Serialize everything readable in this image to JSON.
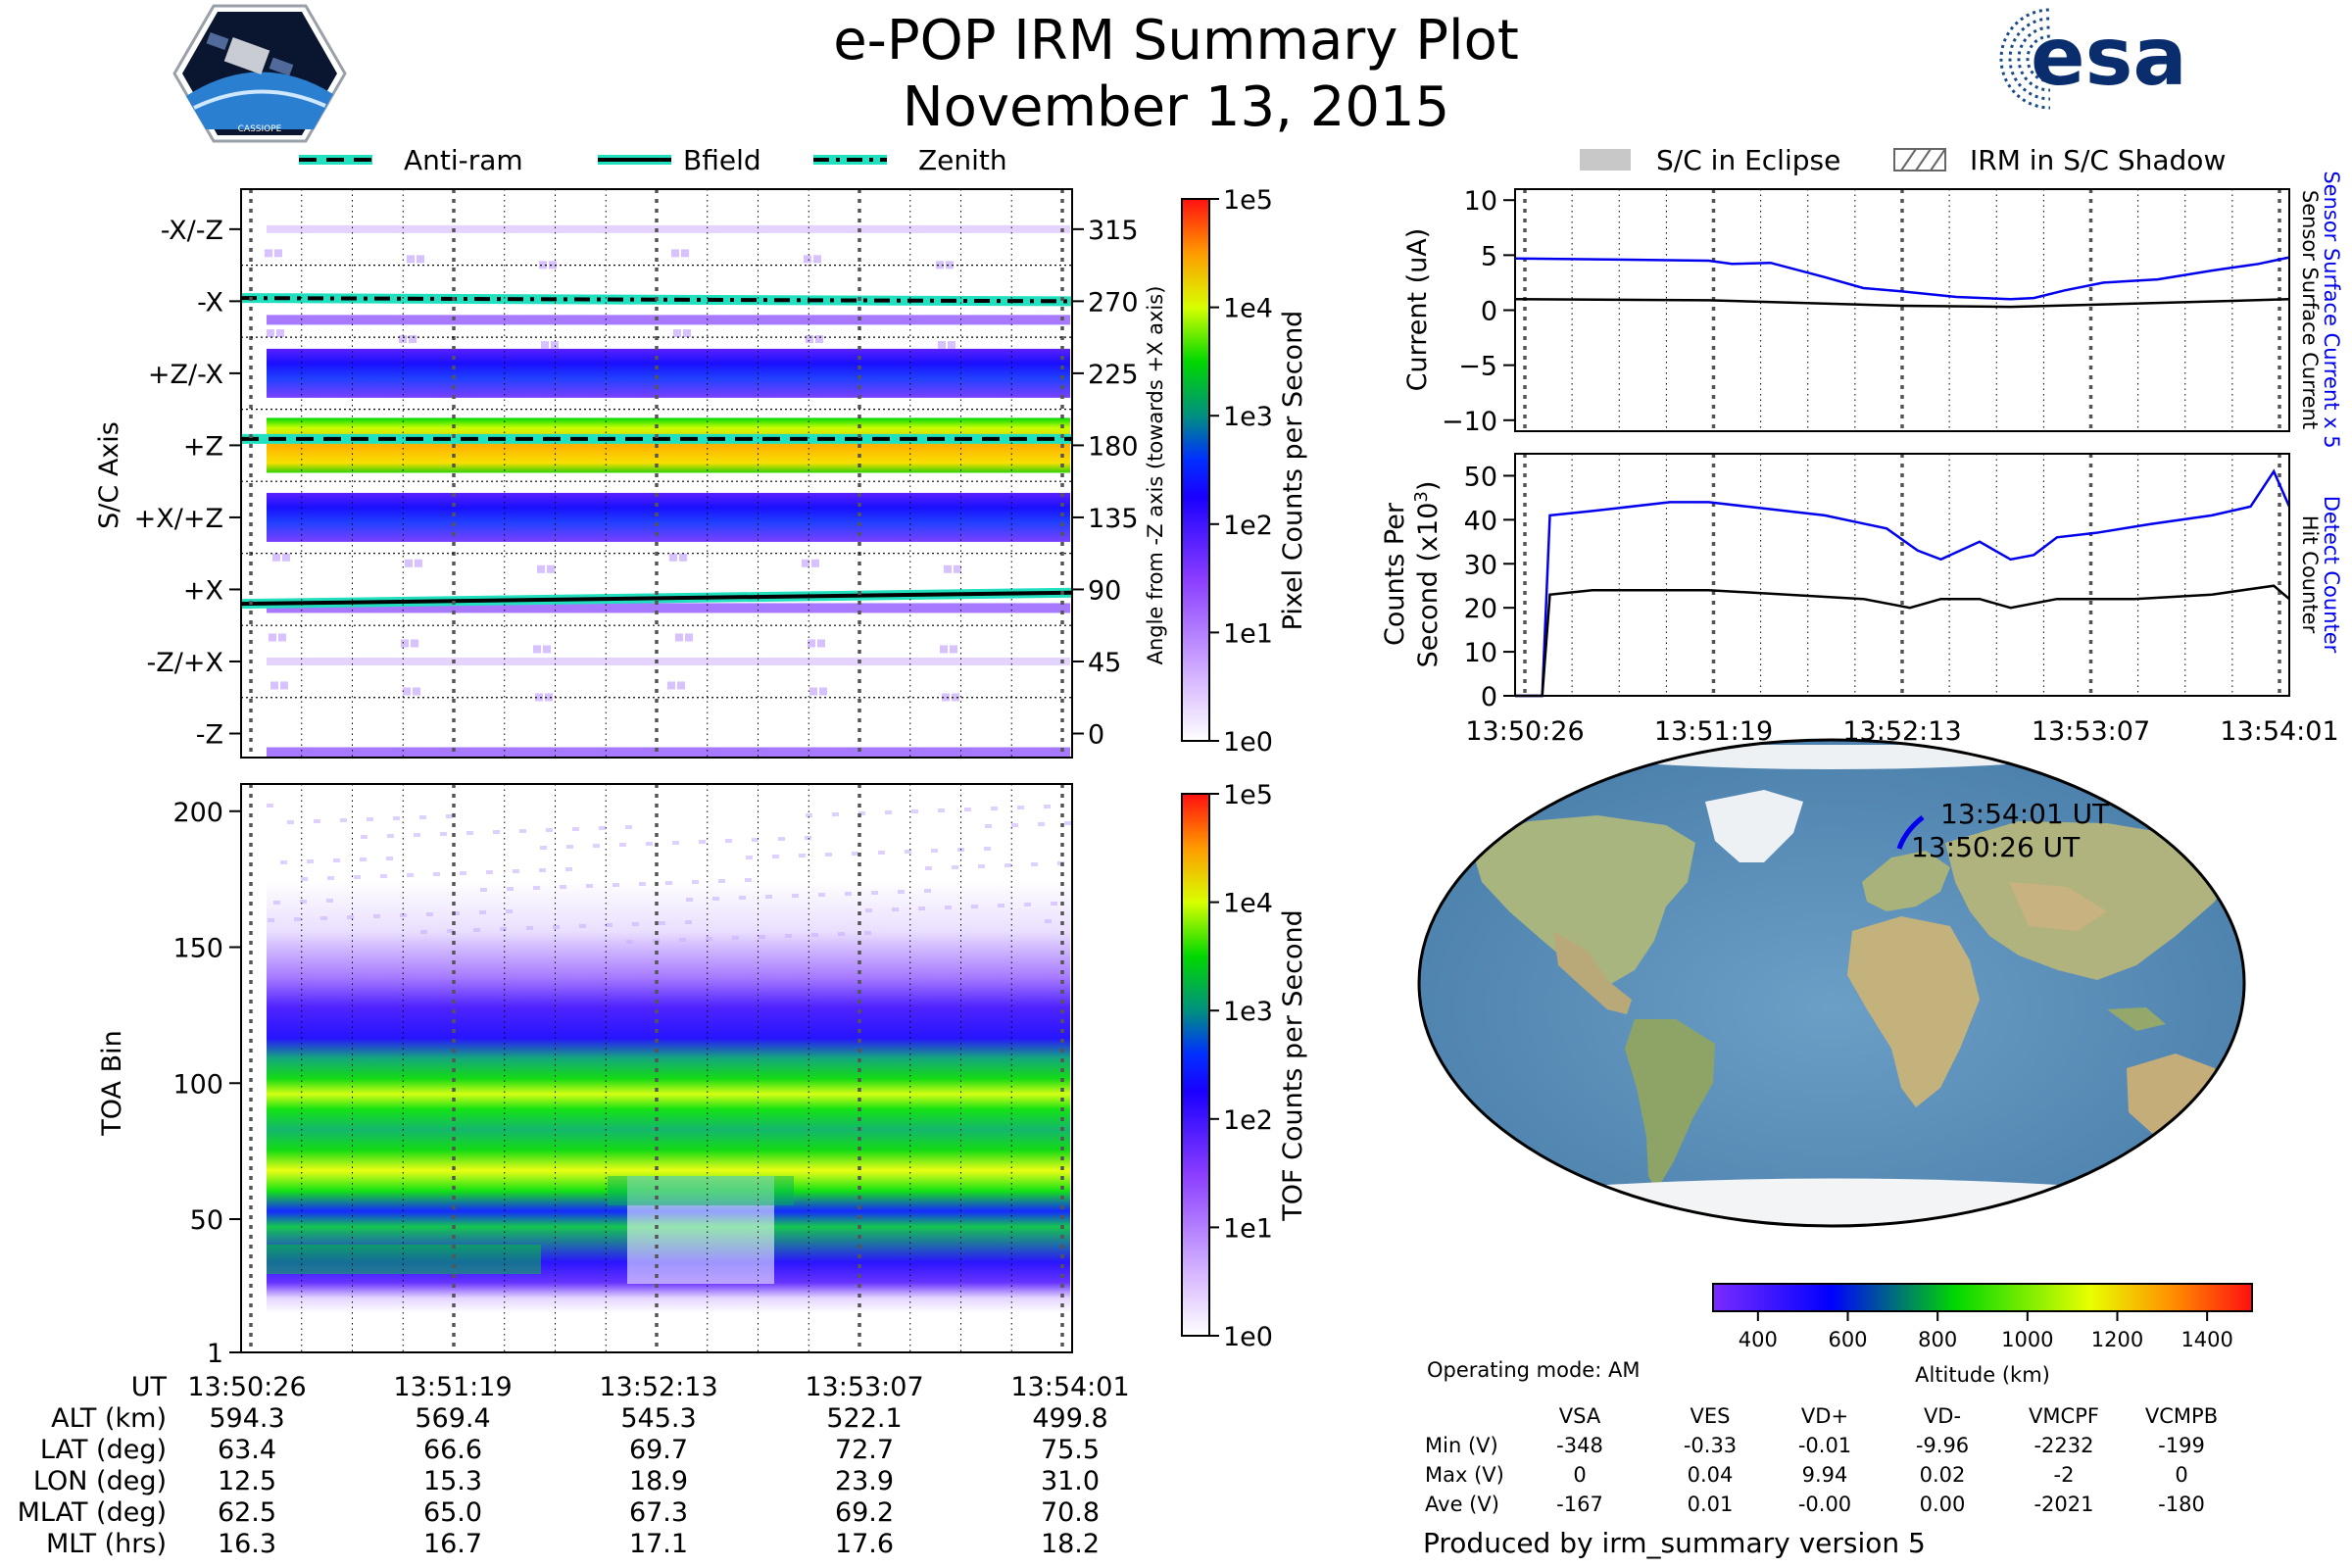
{
  "title": "e-POP IRM Summary Plot",
  "subtitle": "November 13, 2015",
  "logos": {
    "left_badge": "CASSIOPE",
    "right": "esa"
  },
  "colors": {
    "series_blue": "#0000ee",
    "series_black": "#000000",
    "line_teal": "#20e0c0",
    "map_ocean": "#5b8fb8",
    "map_land": "#a5b07a",
    "map_ice": "#f2f4f6"
  },
  "time_ticks": [
    "13:50:26",
    "13:51:19",
    "13:52:13",
    "13:53:07",
    "13:54:01"
  ],
  "legend_top_left": [
    "Anti-ram",
    "Bfield",
    "Zenith"
  ],
  "legend_top_right": [
    "S/C in Eclipse",
    "IRM in S/C Shadow"
  ],
  "chart_data": [
    {
      "id": "sc_axis_heatmap",
      "type": "heatmap",
      "ylabel": "S/C Axis",
      "ylabel_right": "Angle from -Z axis (towards +X axis)",
      "axis_labels": [
        "-X/-Z",
        "-X",
        "+Z/-X",
        "+Z",
        "+X/+Z",
        "+X",
        "-Z/+X",
        "-Z"
      ],
      "angle_ticks": [
        315,
        270,
        225,
        180,
        135,
        90,
        45,
        0
      ],
      "ylim": [
        -15,
        340
      ],
      "lines": [
        {
          "name": "Zenith",
          "angle_start": 272,
          "angle_end": 270
        },
        {
          "name": "Anti-ram",
          "angle_start": 184,
          "angle_end": 184
        },
        {
          "name": "Bfield",
          "angle_start": 81,
          "angle_end": 88
        }
      ],
      "bands": [
        {
          "angle": 180,
          "level": "high"
        },
        {
          "angle": 225,
          "level": "medium"
        },
        {
          "angle": 135,
          "level": "medium"
        },
        {
          "angle": 270,
          "level": "low"
        },
        {
          "angle": 90,
          "level": "low"
        },
        {
          "angle": 0,
          "level": "low"
        },
        {
          "angle": 315,
          "level": "sparse"
        },
        {
          "angle": 45,
          "level": "sparse"
        }
      ],
      "colorbar": {
        "label": "Pixel Counts per Second",
        "ticks": [
          "1e5",
          "1e4",
          "1e3",
          "1e2",
          "1e1",
          "1e0"
        ]
      }
    },
    {
      "id": "toa_heatmap",
      "type": "heatmap",
      "ylabel": "TOA Bin",
      "yticks": [
        "200",
        "150",
        "100",
        "50",
        "1"
      ],
      "ylim": [
        1,
        210
      ],
      "colorbar": {
        "label": "TOF Counts per Second",
        "ticks": [
          "1e5",
          "1e4",
          "1e3",
          "1e2",
          "1e1",
          "1e0"
        ]
      }
    },
    {
      "id": "current_line",
      "type": "line",
      "ylabel": "Current (uA)",
      "right_label_blue": "Sensor Surface Current x 5",
      "right_label_black": "Sensor Surface Current",
      "ylim": [
        -11,
        11
      ],
      "yticks": [
        "10",
        "5",
        "0",
        "−5",
        "−10"
      ],
      "series": [
        {
          "name": "Sensor Surface Current x 5",
          "x": [
            0,
            0.25,
            0.28,
            0.33,
            0.4,
            0.45,
            0.5,
            0.57,
            0.64,
            0.67,
            0.71,
            0.76,
            0.83,
            0.9,
            0.96,
            1.0
          ],
          "values": [
            4.7,
            4.5,
            4.2,
            4.3,
            3.0,
            2.0,
            1.7,
            1.2,
            1.0,
            1.1,
            1.8,
            2.5,
            2.8,
            3.6,
            4.2,
            4.8
          ]
        },
        {
          "name": "Sensor Surface Current",
          "x": [
            0,
            0.25,
            0.5,
            0.64,
            0.8,
            1.0
          ],
          "values": [
            1.0,
            0.9,
            0.4,
            0.3,
            0.6,
            1.0
          ]
        }
      ]
    },
    {
      "id": "counts_line",
      "type": "line",
      "ylabel": "Counts Per",
      "ylabel_2": "Second (x10",
      "ylabel_sup": "3",
      "ylabel_close": ")",
      "right_label_blue": "Detect Counter",
      "right_label_black": "Hit Counter",
      "ylim": [
        0,
        55
      ],
      "yticks": [
        "50",
        "40",
        "30",
        "20",
        "10",
        "0"
      ],
      "series": [
        {
          "name": "Detect Counter",
          "x": [
            0,
            0.035,
            0.045,
            0.1,
            0.2,
            0.25,
            0.3,
            0.4,
            0.48,
            0.52,
            0.55,
            0.6,
            0.64,
            0.67,
            0.7,
            0.75,
            0.82,
            0.9,
            0.95,
            0.98,
            1.0
          ],
          "values": [
            0,
            0,
            41,
            42,
            44,
            44,
            43,
            41,
            38,
            33,
            31,
            35,
            31,
            32,
            36,
            37,
            39,
            41,
            43,
            51,
            43
          ]
        },
        {
          "name": "Hit Counter",
          "x": [
            0,
            0.035,
            0.045,
            0.1,
            0.25,
            0.45,
            0.51,
            0.55,
            0.6,
            0.64,
            0.7,
            0.8,
            0.9,
            0.98,
            1.0
          ],
          "values": [
            0,
            0,
            23,
            24,
            24,
            22,
            20,
            22,
            22,
            20,
            22,
            22,
            23,
            25,
            22
          ]
        }
      ]
    }
  ],
  "map": {
    "label_end": "13:54:01 UT",
    "label_start": "13:50:26 UT",
    "altitude_label": "Altitude (km)",
    "altitude_ticks": [
      "400",
      "600",
      "800",
      "1000",
      "1200",
      "1400"
    ]
  },
  "ephemeris": {
    "rows": [
      {
        "label": "UT",
        "values": [
          "13:50:26",
          "13:51:19",
          "13:52:13",
          "13:53:07",
          "13:54:01"
        ]
      },
      {
        "label": "ALT (km)",
        "values": [
          "594.3",
          "569.4",
          "545.3",
          "522.1",
          "499.8"
        ]
      },
      {
        "label": "LAT (deg)",
        "values": [
          "63.4",
          "66.6",
          "69.7",
          "72.7",
          "75.5"
        ]
      },
      {
        "label": "LON (deg)",
        "values": [
          "12.5",
          "15.3",
          "18.9",
          "23.9",
          "31.0"
        ]
      },
      {
        "label": "MLAT (deg)",
        "values": [
          "62.5",
          "65.0",
          "67.3",
          "69.2",
          "70.8"
        ]
      },
      {
        "label": "MLT (hrs)",
        "values": [
          "16.3",
          "16.7",
          "17.1",
          "17.6",
          "18.2"
        ]
      }
    ]
  },
  "voltages": {
    "mode": "Operating mode: AM",
    "columns": [
      "VSA",
      "VES",
      "VD+",
      "VD-",
      "VMCPF",
      "VCMPB"
    ],
    "rows": [
      {
        "label": "Min (V)",
        "values": [
          "-348",
          "-0.33",
          "-0.01",
          "-9.96",
          "-2232",
          "-199"
        ]
      },
      {
        "label": "Max (V)",
        "values": [
          "0",
          "0.04",
          "9.94",
          "0.02",
          "-2",
          "0"
        ]
      },
      {
        "label": "Ave (V)",
        "values": [
          "-167",
          "0.01",
          "-0.00",
          "0.00",
          "-2021",
          "-180"
        ]
      }
    ]
  },
  "footer": "Produced by irm_summary version 5"
}
